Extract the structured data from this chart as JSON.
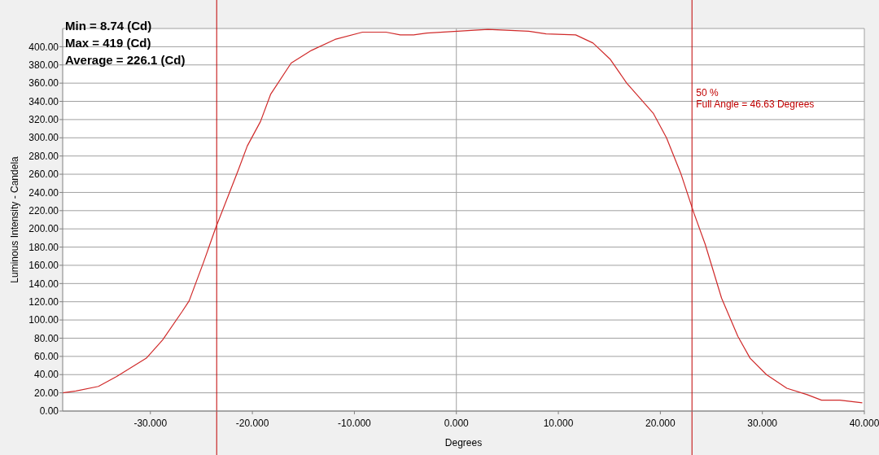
{
  "chart_data": {
    "type": "line",
    "xlabel": "Degrees",
    "ylabel": "Luminous Intensity - Candela",
    "xlim": [
      -38.6,
      40
    ],
    "xticks": [
      {
        "value": -30,
        "label": "-30.000"
      },
      {
        "value": -20,
        "label": "-20.000"
      },
      {
        "value": -10,
        "label": "-10.000"
      },
      {
        "value": 0,
        "label": "0.000"
      },
      {
        "value": 10,
        "label": "10.000"
      },
      {
        "value": 20,
        "label": "20.000"
      },
      {
        "value": 30,
        "label": "30.000"
      },
      {
        "value": 40,
        "label": "40.000"
      }
    ],
    "ylim": [
      0,
      420
    ],
    "yticks": [
      {
        "value": 0,
        "label": "0.00"
      },
      {
        "value": 20,
        "label": "20.00"
      },
      {
        "value": 40,
        "label": "40.00"
      },
      {
        "value": 60,
        "label": "60.00"
      },
      {
        "value": 80,
        "label": "80.00"
      },
      {
        "value": 100,
        "label": "100.00"
      },
      {
        "value": 120,
        "label": "120.00"
      },
      {
        "value": 140,
        "label": "140.00"
      },
      {
        "value": 160,
        "label": "160.00"
      },
      {
        "value": 180,
        "label": "180.00"
      },
      {
        "value": 200,
        "label": "200.00"
      },
      {
        "value": 220,
        "label": "220.00"
      },
      {
        "value": 240,
        "label": "240.00"
      },
      {
        "value": 260,
        "label": "260.00"
      },
      {
        "value": 280,
        "label": "280.00"
      },
      {
        "value": 300,
        "label": "300.00"
      },
      {
        "value": 320,
        "label": "320.00"
      },
      {
        "value": 340,
        "label": "340.00"
      },
      {
        "value": 360,
        "label": "360.00"
      },
      {
        "value": 380,
        "label": "380.00"
      },
      {
        "value": 400,
        "label": "400.00"
      }
    ],
    "grid": "y",
    "marker": "none",
    "line_style": "solid",
    "series": [
      {
        "color": "#d02a2a",
        "x": [
          -38.6,
          -37.3,
          -35.1,
          -33.3,
          -30.4,
          -28.8,
          -26.9,
          -26.2,
          -24.8,
          -23.6,
          -21.4,
          -20.5,
          -19.2,
          -18.2,
          -16.2,
          -14.2,
          -11.9,
          -9.2,
          -6.9,
          -5.5,
          -4.2,
          -2.9,
          0.1,
          3.1,
          7.1,
          8.8,
          11.7,
          13.4,
          15.1,
          16.7,
          19.3,
          20.6,
          22,
          23.3,
          24.4,
          26,
          27.6,
          28.8,
          30.4,
          32.4,
          34.4,
          35.8,
          37.6,
          39.8
        ],
        "values": [
          20,
          22,
          27,
          38,
          58,
          78,
          109,
          121,
          163,
          201,
          264,
          291,
          318,
          348,
          382,
          396,
          408,
          416,
          416,
          413,
          413,
          415,
          417,
          419,
          417,
          414,
          413,
          404,
          386,
          360,
          327,
          300,
          261,
          217,
          183,
          124,
          82,
          58,
          40,
          25,
          18,
          12,
          12,
          9
        ]
      }
    ],
    "ref_lines": [
      {
        "axis": "x",
        "value": 0,
        "color": "#a0a0a0"
      },
      {
        "axis": "x",
        "value": -23.5,
        "color": "#c00000"
      },
      {
        "axis": "x",
        "value": 23.1,
        "color": "#c00000"
      }
    ],
    "annotations": [
      "Min = 8.74 (Cd)",
      "Max = 419 (Cd)",
      "Average = 226.1 (Cd)",
      {
        "text": "50 %",
        "x": 23.1,
        "y": 346
      },
      {
        "text": "Full Angle = 46.63 Degrees",
        "x": 23.1,
        "y": 333
      }
    ]
  }
}
